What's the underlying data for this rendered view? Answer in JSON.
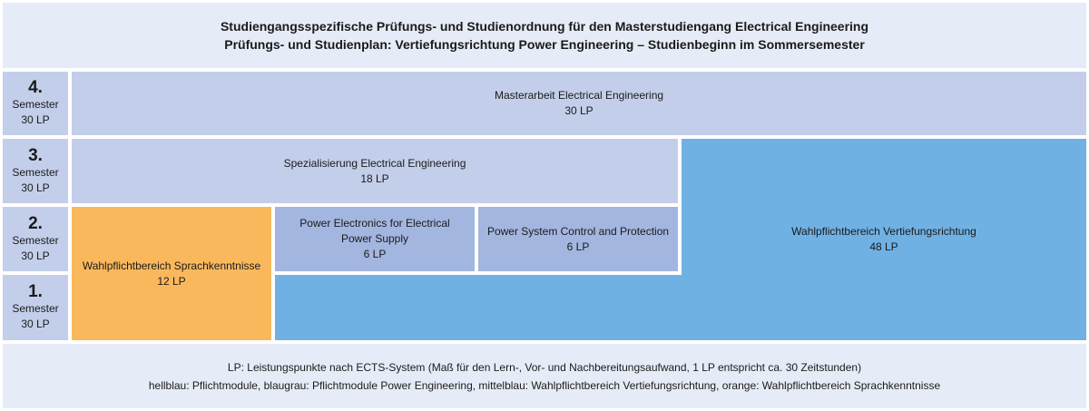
{
  "header": {
    "line1": "Studiengangsspezifische Prüfungs- und Studienordnung für den Masterstudiengang Electrical Engineering",
    "line2": "Prüfungs- und Studienplan: Vertiefungsrichtung Power Engineering – Studienbeginn im Sommersemester"
  },
  "semesters": [
    {
      "num": "4.",
      "label": "Semester",
      "lp": "30 LP"
    },
    {
      "num": "3.",
      "label": "Semester",
      "lp": "30 LP"
    },
    {
      "num": "2.",
      "label": "Semester",
      "lp": "30 LP"
    },
    {
      "num": "1.",
      "label": "Semester",
      "lp": "30 LP"
    }
  ],
  "modules": {
    "masterarbeit": {
      "title": "Masterarbeit Electrical Engineering",
      "lp": "30 LP"
    },
    "spezialisierung": {
      "title": "Spezialisierung Electrical Engineering",
      "lp": "18 LP"
    },
    "sprache": {
      "title": "Wahlpflichtbereich Sprachkenntnisse",
      "lp": "12 LP"
    },
    "power_electronics": {
      "title_line1": "Power Electronics for Electrical",
      "title_line2": "Power Supply",
      "lp": "6 LP"
    },
    "power_system": {
      "title": "Power System Control and Protection",
      "lp": "6 LP"
    },
    "vertiefung": {
      "title": "Wahlpflichtbereich Vertiefungsrichtung",
      "lp": "48 LP"
    }
  },
  "footer": {
    "line1": "LP: Leistungspunkte nach ECTS-System (Maß für den Lern-, Vor- und Nachbereitungsaufwand, 1 LP entspricht ca. 30 Zeitstunden)",
    "line2": "hellblau: Pflichtmodule, blaugrau: Pflichtmodule Power Engineering, mittelblau: Wahlpflichtbereich Vertiefungsrichtung, orange: Wahlpflichtbereich Sprachkenntnisse"
  },
  "colors": {
    "hellblau": "#c3cfea",
    "blaugrau": "#a3b6e0",
    "mittelblau": "#70b1e4",
    "orange": "#f9b85c",
    "header_bg": "#e6ecf7"
  }
}
